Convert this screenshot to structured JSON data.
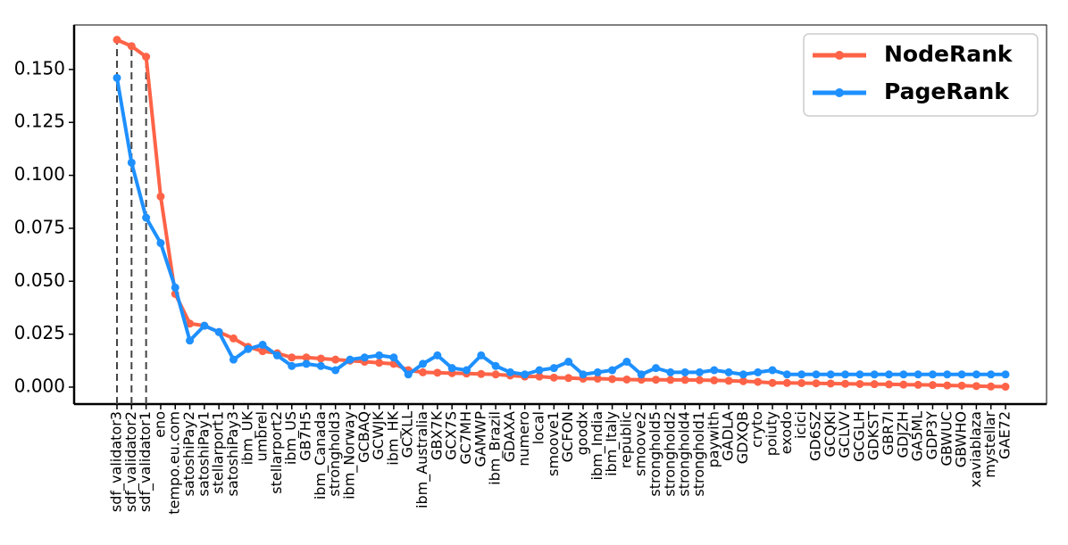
{
  "chart_data": {
    "type": "line",
    "categories": [
      "sdf_validator3",
      "sdf_validator2",
      "sdf_validator1",
      "eno",
      "tempo.eu.com",
      "satoshiPay2",
      "satoshiPay1",
      "stellarport1",
      "satoshiPay3",
      "ibm_UK",
      "umbrel",
      "stellarport2",
      "ibm_US",
      "GB7H5",
      "ibm_Canada",
      "stronghold3",
      "ibm_Norway",
      "GCBAQ",
      "GCWJK",
      "ibm_HK",
      "GCXLL",
      "ibm_Australia",
      "GBX7K",
      "GCX7S",
      "GC7MH",
      "GAMWP",
      "ibm_Brazil",
      "GDAXA",
      "numero",
      "local",
      "smoove1",
      "GCFON",
      "goodx",
      "ibm_India",
      "ibm_Italy",
      "republic",
      "smoove2",
      "stronghold5",
      "stronghold2",
      "stronghold4",
      "stronghold1",
      "paywith",
      "GADLA",
      "GDXQB",
      "cryto",
      "poiuty",
      "exodo",
      "icici",
      "GD6SZ",
      "GCQKI",
      "GCLVV",
      "GCGLH",
      "GDKST",
      "GBR7I",
      "GDJZH",
      "GA5ML",
      "GDP3Y",
      "GBWUC",
      "GBWHO",
      "xaviablaza",
      "mystellar",
      "GAE72"
    ],
    "series": [
      {
        "name": "NodeRank",
        "color": "#ff6347",
        "values": [
          0.164,
          0.161,
          0.156,
          0.09,
          0.044,
          0.03,
          0.029,
          0.026,
          0.023,
          0.019,
          0.017,
          0.016,
          0.014,
          0.014,
          0.0135,
          0.013,
          0.0125,
          0.012,
          0.0115,
          0.011,
          0.008,
          0.007,
          0.0068,
          0.0066,
          0.0064,
          0.0062,
          0.006,
          0.0055,
          0.005,
          0.005,
          0.0045,
          0.0043,
          0.004,
          0.004,
          0.0038,
          0.0036,
          0.0035,
          0.0035,
          0.0034,
          0.0034,
          0.0033,
          0.0032,
          0.003,
          0.0028,
          0.0025,
          0.002,
          0.002,
          0.0019,
          0.0018,
          0.0017,
          0.0016,
          0.0015,
          0.0014,
          0.0013,
          0.0012,
          0.0011,
          0.001,
          0.0008,
          0.0007,
          0.0005,
          0.0003,
          0.0002
        ]
      },
      {
        "name": "PageRank",
        "color": "#1e90ff",
        "values": [
          0.146,
          0.106,
          0.08,
          0.068,
          0.047,
          0.022,
          0.029,
          0.026,
          0.013,
          0.018,
          0.02,
          0.015,
          0.01,
          0.011,
          0.01,
          0.008,
          0.013,
          0.014,
          0.015,
          0.014,
          0.006,
          0.011,
          0.015,
          0.009,
          0.008,
          0.015,
          0.01,
          0.007,
          0.006,
          0.008,
          0.009,
          0.012,
          0.006,
          0.007,
          0.008,
          0.012,
          0.006,
          0.009,
          0.007,
          0.007,
          0.007,
          0.008,
          0.007,
          0.006,
          0.007,
          0.008,
          0.006,
          0.006,
          0.006,
          0.006,
          0.006,
          0.006,
          0.006,
          0.006,
          0.006,
          0.006,
          0.006,
          0.006,
          0.006,
          0.006,
          0.006,
          0.006
        ]
      }
    ],
    "ylim": [
      -0.008,
      0.171
    ],
    "yticks": [
      {
        "value": 0,
        "label": "0.000"
      },
      0.025,
      {
        "value": 0.05,
        "label": "0.050"
      },
      0.075,
      {
        "value": 0.1,
        "label": "0.100"
      },
      0.125,
      {
        "value": 0.15,
        "label": "0.150"
      }
    ],
    "legend": "upper right"
  }
}
